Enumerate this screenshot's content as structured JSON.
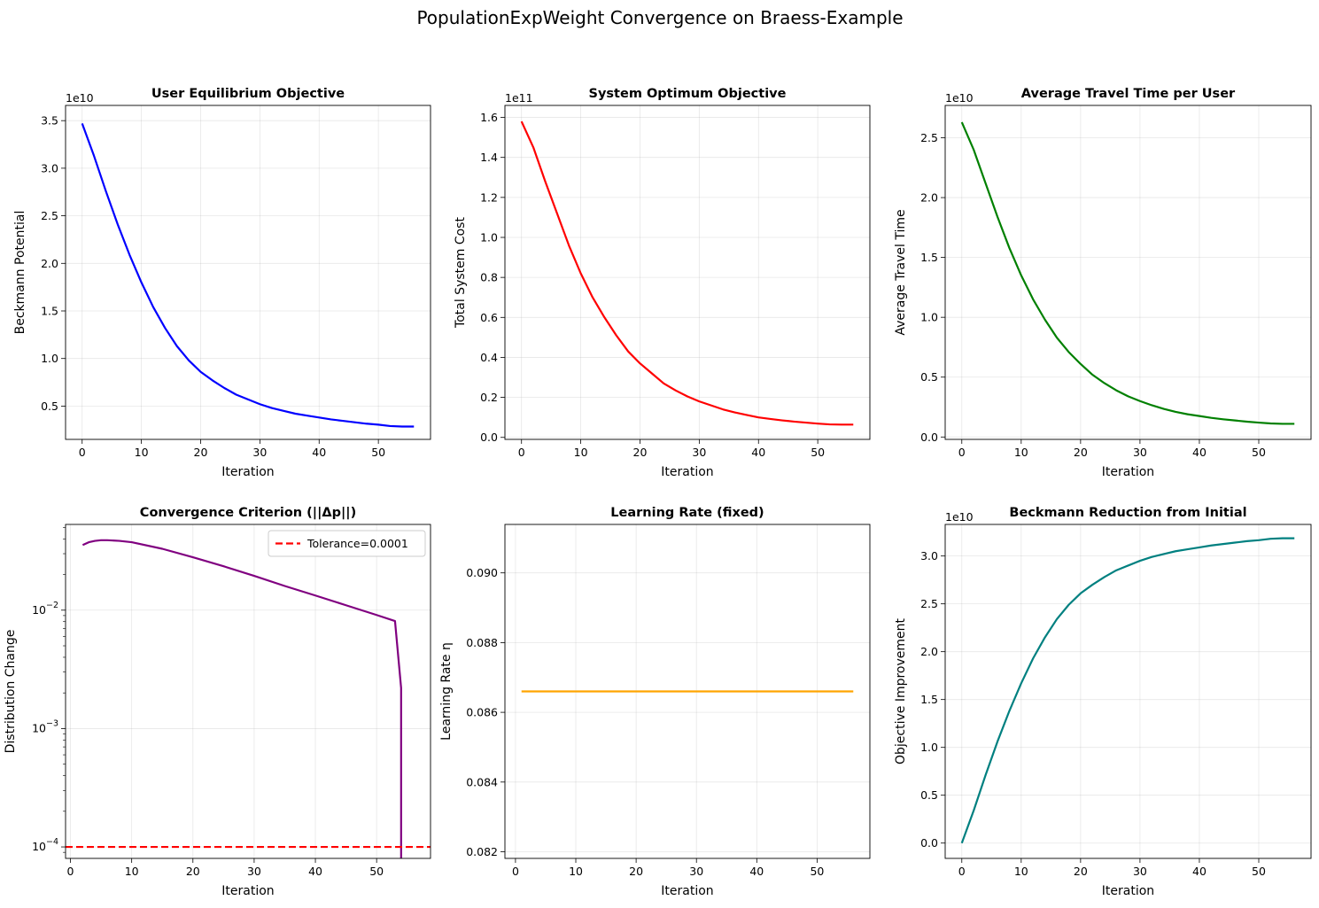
{
  "suptitle": "PopulationExpWeight Convergence on Braess-Example",
  "chart_data": [
    {
      "type": "line",
      "title": "User Equilibrium Objective",
      "xlabel": "Iteration",
      "ylabel": "Beckmann Potential",
      "offset_text": "1e10",
      "scale": 10000000000.0,
      "xlim": [
        -2.8,
        58.8
      ],
      "ylim": [
        0.15,
        3.66
      ],
      "yscale": "linear",
      "grid": true,
      "xticks": [
        0,
        10,
        20,
        30,
        40,
        50
      ],
      "yticks": [
        0.5,
        1.0,
        1.5,
        2.0,
        2.5,
        3.0,
        3.5
      ],
      "yticklabels": [
        "0.5",
        "1.0",
        "1.5",
        "2.0",
        "2.5",
        "3.0",
        "3.5"
      ],
      "series": [
        {
          "color": "#0000ff",
          "x": [
            0,
            2,
            4,
            6,
            8,
            10,
            12,
            14,
            16,
            18,
            20,
            22,
            24,
            26,
            28,
            30,
            32,
            34,
            36,
            38,
            40,
            42,
            44,
            46,
            48,
            50,
            52,
            54,
            56
          ],
          "y": [
            3.47,
            3.13,
            2.76,
            2.41,
            2.09,
            1.8,
            1.54,
            1.32,
            1.13,
            0.98,
            0.86,
            0.77,
            0.69,
            0.62,
            0.57,
            0.52,
            0.48,
            0.45,
            0.42,
            0.4,
            0.38,
            0.36,
            0.345,
            0.33,
            0.315,
            0.305,
            0.29,
            0.285,
            0.285
          ]
        }
      ]
    },
    {
      "type": "line",
      "title": "System Optimum Objective",
      "xlabel": "Iteration",
      "ylabel": "Total System Cost",
      "offset_text": "1e11",
      "scale": 100000000000.0,
      "xlim": [
        -2.8,
        58.8
      ],
      "ylim": [
        -0.01,
        1.66
      ],
      "yscale": "linear",
      "grid": true,
      "xticks": [
        0,
        10,
        20,
        30,
        40,
        50
      ],
      "yticks": [
        0.0,
        0.2,
        0.4,
        0.6,
        0.8,
        1.0,
        1.2,
        1.4,
        1.6
      ],
      "yticklabels": [
        "0.0",
        "0.2",
        "0.4",
        "0.6",
        "0.8",
        "1.0",
        "1.2",
        "1.4",
        "1.6"
      ],
      "series": [
        {
          "color": "#ff0000",
          "x": [
            0,
            2,
            4,
            6,
            8,
            10,
            12,
            14,
            16,
            18,
            20,
            22,
            24,
            26,
            28,
            30,
            32,
            34,
            36,
            38,
            40,
            42,
            44,
            46,
            48,
            50,
            52,
            54,
            56
          ],
          "y": [
            1.58,
            1.45,
            1.28,
            1.12,
            0.96,
            0.82,
            0.7,
            0.6,
            0.51,
            0.43,
            0.37,
            0.32,
            0.27,
            0.235,
            0.205,
            0.18,
            0.16,
            0.14,
            0.125,
            0.112,
            0.1,
            0.092,
            0.085,
            0.079,
            0.074,
            0.069,
            0.065,
            0.064,
            0.064
          ]
        }
      ]
    },
    {
      "type": "line",
      "title": "Average Travel Time per User",
      "xlabel": "Iteration",
      "ylabel": "Average Travel Time",
      "offset_text": "1e10",
      "scale": 10000000000.0,
      "xlim": [
        -2.8,
        58.8
      ],
      "ylim": [
        -0.02,
        2.77
      ],
      "yscale": "linear",
      "grid": true,
      "xticks": [
        0,
        10,
        20,
        30,
        40,
        50
      ],
      "yticks": [
        0.0,
        0.5,
        1.0,
        1.5,
        2.0,
        2.5
      ],
      "yticklabels": [
        "0.0",
        "0.5",
        "1.0",
        "1.5",
        "2.0",
        "2.5"
      ],
      "series": [
        {
          "color": "#008000",
          "x": [
            0,
            2,
            4,
            6,
            8,
            10,
            12,
            14,
            16,
            18,
            20,
            22,
            24,
            26,
            28,
            30,
            32,
            34,
            36,
            38,
            40,
            42,
            44,
            46,
            48,
            50,
            52,
            54,
            56
          ],
          "y": [
            2.63,
            2.4,
            2.12,
            1.84,
            1.58,
            1.35,
            1.15,
            0.98,
            0.83,
            0.71,
            0.61,
            0.52,
            0.45,
            0.39,
            0.34,
            0.3,
            0.265,
            0.235,
            0.21,
            0.19,
            0.175,
            0.16,
            0.148,
            0.138,
            0.128,
            0.12,
            0.113,
            0.11,
            0.11
          ]
        }
      ]
    },
    {
      "type": "line",
      "title": "Convergence Criterion (||Δp||)",
      "xlabel": "Iteration",
      "ylabel": "Distribution Change",
      "xlim": [
        -0.8,
        58.8
      ],
      "ylim": [
        8e-05,
        0.053
      ],
      "yscale": "log",
      "grid": true,
      "xticks": [
        0,
        10,
        20,
        30,
        40,
        50
      ],
      "yticks": [
        0.0001,
        0.001,
        0.01
      ],
      "legend": {
        "position": "upper right",
        "entries": [
          "Tolerance=0.0001"
        ]
      },
      "series": [
        {
          "color": "#800080",
          "x": [
            2,
            3,
            4,
            5,
            6,
            8,
            10,
            15,
            20,
            25,
            30,
            35,
            40,
            45,
            50,
            53,
            54,
            54
          ],
          "y": [
            0.0355,
            0.0375,
            0.0385,
            0.039,
            0.039,
            0.0385,
            0.0375,
            0.033,
            0.028,
            0.0235,
            0.0195,
            0.016,
            0.0133,
            0.011,
            0.0091,
            0.0081,
            0.0022,
            5e-05
          ]
        },
        {
          "name": "Tolerance=0.0001",
          "color": "#ff0000",
          "dashed": true,
          "x": [
            -0.8,
            58.8
          ],
          "y": [
            0.0001,
            0.0001
          ]
        }
      ]
    },
    {
      "type": "line",
      "title": "Learning Rate (fixed)",
      "xlabel": "Iteration",
      "ylabel": "Learning Rate η",
      "xlim": [
        -1.75,
        58.75
      ],
      "ylim": [
        0.08181,
        0.09139
      ],
      "yscale": "linear",
      "grid": true,
      "xticks": [
        0,
        10,
        20,
        30,
        40,
        50
      ],
      "yticks": [
        0.082,
        0.084,
        0.086,
        0.088,
        0.09
      ],
      "yticklabels": [
        "0.082",
        "0.084",
        "0.086",
        "0.088",
        "0.090"
      ],
      "series": [
        {
          "color": "#ffa500",
          "x": [
            1,
            56
          ],
          "y": [
            0.0866,
            0.0866
          ]
        }
      ]
    },
    {
      "type": "line",
      "title": "Beckmann Reduction from Initial",
      "xlabel": "Iteration",
      "ylabel": "Objective Improvement",
      "offset_text": "1e10",
      "scale": 10000000000.0,
      "xlim": [
        -2.8,
        58.8
      ],
      "ylim": [
        -0.16,
        3.33
      ],
      "yscale": "linear",
      "grid": true,
      "xticks": [
        0,
        10,
        20,
        30,
        40,
        50
      ],
      "yticks": [
        0.0,
        0.5,
        1.0,
        1.5,
        2.0,
        2.5,
        3.0
      ],
      "yticklabels": [
        "0.0",
        "0.5",
        "1.0",
        "1.5",
        "2.0",
        "2.5",
        "3.0"
      ],
      "series": [
        {
          "color": "#008080",
          "x": [
            0,
            2,
            4,
            6,
            8,
            10,
            12,
            14,
            16,
            18,
            20,
            22,
            24,
            26,
            28,
            30,
            32,
            34,
            36,
            38,
            40,
            42,
            44,
            46,
            48,
            50,
            52,
            54,
            56
          ],
          "y": [
            0.0,
            0.34,
            0.71,
            1.06,
            1.38,
            1.67,
            1.93,
            2.15,
            2.34,
            2.49,
            2.61,
            2.7,
            2.78,
            2.85,
            2.9,
            2.95,
            2.99,
            3.02,
            3.05,
            3.07,
            3.09,
            3.11,
            3.125,
            3.14,
            3.155,
            3.165,
            3.18,
            3.185,
            3.185
          ]
        }
      ]
    }
  ]
}
